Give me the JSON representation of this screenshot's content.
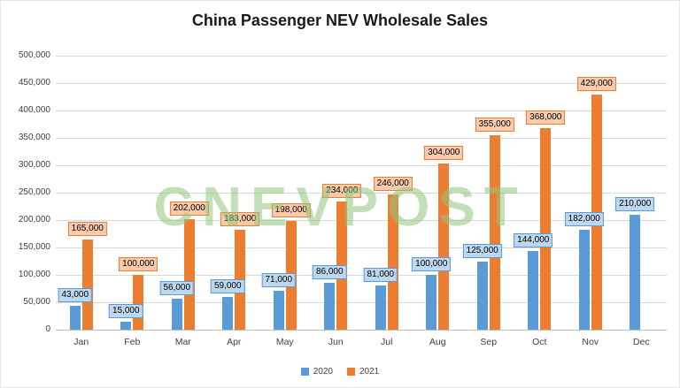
{
  "title": "China Passenger NEV Wholesale Sales",
  "watermark": "CNEVPOST",
  "legend": {
    "items": [
      {
        "label": "2020",
        "color": "#5B9BD5"
      },
      {
        "label": "2021",
        "color": "#ED7D31"
      }
    ]
  },
  "chart_data": {
    "type": "bar",
    "title": "China Passenger NEV Wholesale Sales",
    "categories": [
      "Jan",
      "Feb",
      "Mar",
      "Apr",
      "May",
      "Jun",
      "Jul",
      "Aug",
      "Sep",
      "Oct",
      "Nov",
      "Dec"
    ],
    "series": [
      {
        "name": "2020",
        "color": "#5B9BD5",
        "label_fill": "#BDD7EE",
        "label_border": "#5B9BD5",
        "values": [
          43000,
          15000,
          56000,
          59000,
          71000,
          86000,
          81000,
          100000,
          125000,
          144000,
          182000,
          210000
        ]
      },
      {
        "name": "2021",
        "color": "#ED7D31",
        "label_fill": "#F8CBAD",
        "label_border": "#ED7D31",
        "values": [
          165000,
          100000,
          202000,
          183000,
          198000,
          234000,
          246000,
          304000,
          355000,
          368000,
          429000,
          null
        ]
      }
    ],
    "xlabel": "",
    "ylabel": "",
    "ylim": [
      0,
      500000
    ],
    "ytick_step": 50000,
    "grid": true,
    "legend_position": "bottom",
    "gridline_color": "#d9d9d9",
    "axis_color": "#bfbfbf"
  }
}
